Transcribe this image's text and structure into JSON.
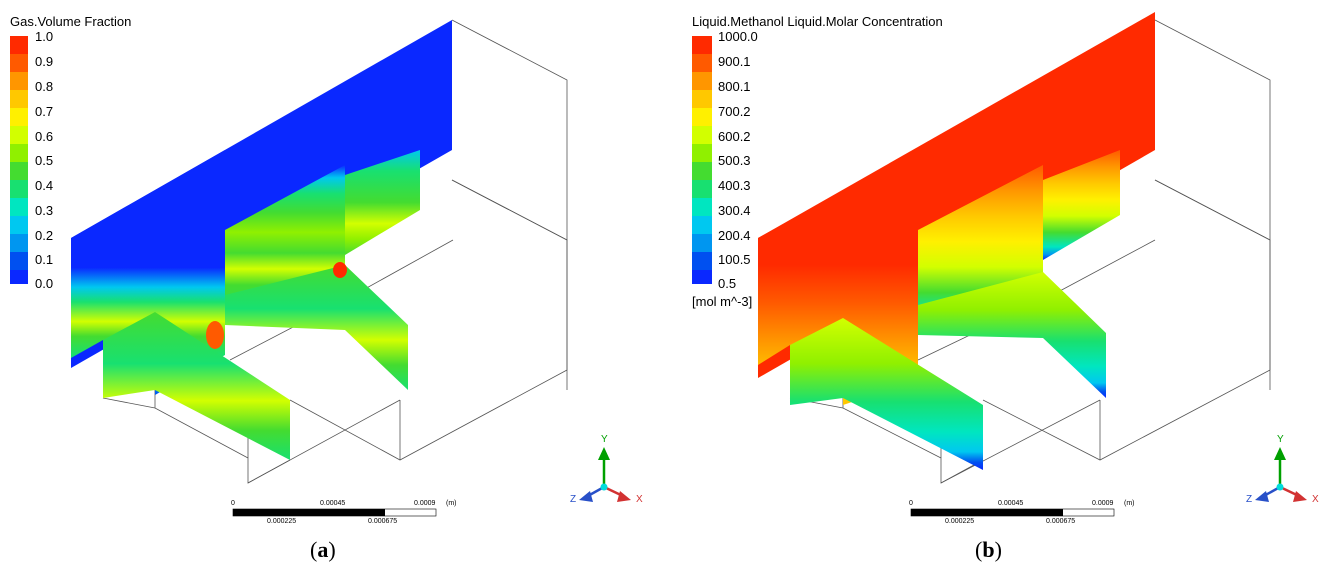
{
  "panels": [
    {
      "id": "a",
      "legend_title": "Gas.Volume Fraction",
      "legend_ticks": [
        "1.0",
        "0.9",
        "0.8",
        "0.7",
        "0.6",
        "0.5",
        "0.4",
        "0.3",
        "0.2",
        "0.1",
        "0.0"
      ],
      "legend_unit": "",
      "caption_letter": "a",
      "scalebar_top": [
        "0",
        "0.00045",
        "0.0009",
        "(m)"
      ],
      "scalebar_bottom": [
        "0.000225",
        "0.000675"
      ],
      "axis_labels": {
        "y": "Y",
        "x": "X",
        "z": "Z"
      }
    },
    {
      "id": "b",
      "legend_title": "Liquid.Methanol Liquid.Molar Concentration",
      "legend_ticks": [
        "1000.0",
        "900.1",
        "800.1",
        "700.2",
        "600.2",
        "500.3",
        "400.3",
        "300.4",
        "200.4",
        "100.5",
        "0.5"
      ],
      "legend_unit": "[mol m^-3]",
      "caption_letter": "b",
      "scalebar_top": [
        "0",
        "0.00045",
        "0.0009",
        "(m)"
      ],
      "scalebar_bottom": [
        "0.000225",
        "0.000675"
      ],
      "axis_labels": {
        "y": "Y",
        "x": "X",
        "z": "Z"
      }
    }
  ],
  "colormap": [
    "#ff2a00",
    "#ff5a00",
    "#ff9600",
    "#ffc800",
    "#fff000",
    "#d2ff00",
    "#90f000",
    "#44dc30",
    "#18e070",
    "#00e6c0",
    "#00c8f0",
    "#0096f0",
    "#0050f0",
    "#0a28ff"
  ],
  "axis_colors": {
    "x": "#d23232",
    "y": "#00a000",
    "z": "#2850c8",
    "origin": "#00dcdc"
  }
}
